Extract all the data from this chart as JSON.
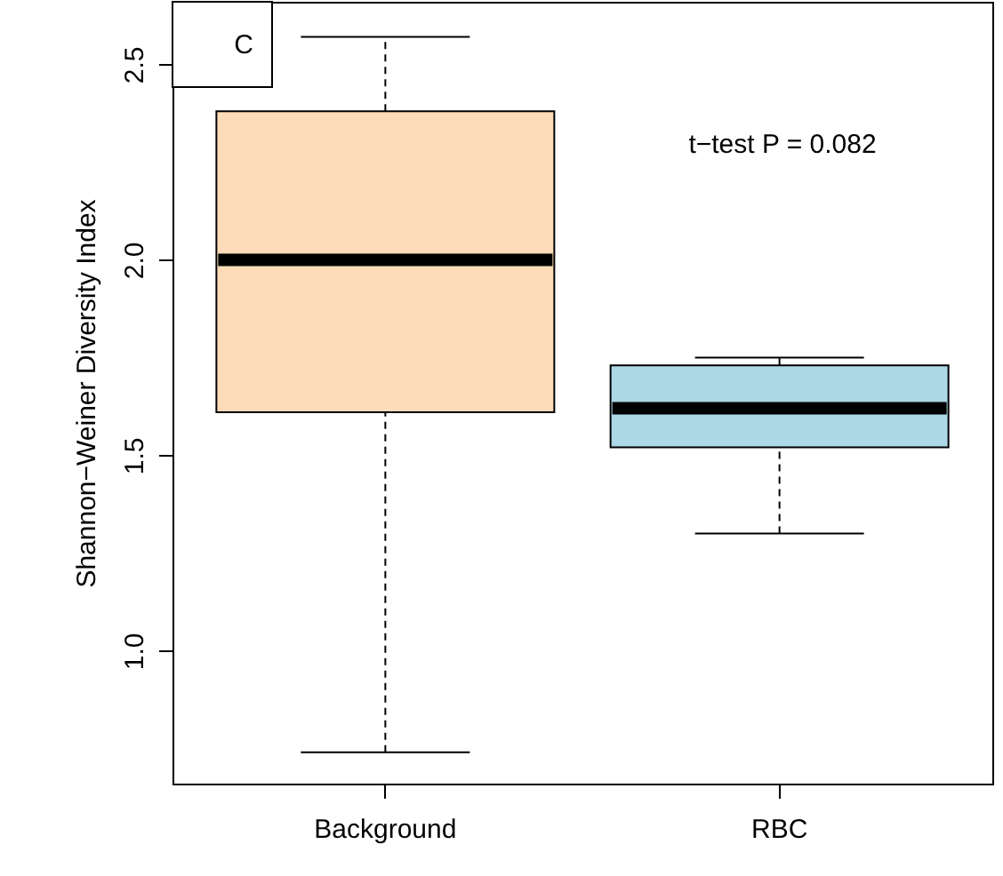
{
  "chart_data": {
    "type": "box",
    "ylabel": "Shannon−Weiner Diversity Index",
    "categories": [
      "Background",
      "RBC"
    ],
    "colors": [
      "#fddbb8",
      "#add8e6"
    ],
    "boxes": [
      {
        "low": 0.74,
        "q1": 1.61,
        "median": 2.0,
        "q3": 2.38,
        "high": 2.57
      },
      {
        "low": 1.3,
        "q1": 1.52,
        "median": 1.62,
        "q3": 1.73,
        "high": 1.75
      }
    ],
    "ylim": [
      0.66,
      2.66
    ],
    "yticks": [
      {
        "value": 1,
        "label": "1.0"
      },
      1.5,
      {
        "value": 2,
        "label": "2.0"
      },
      2.5
    ],
    "annotations": [
      "C",
      "t−test P = 0.082"
    ]
  }
}
